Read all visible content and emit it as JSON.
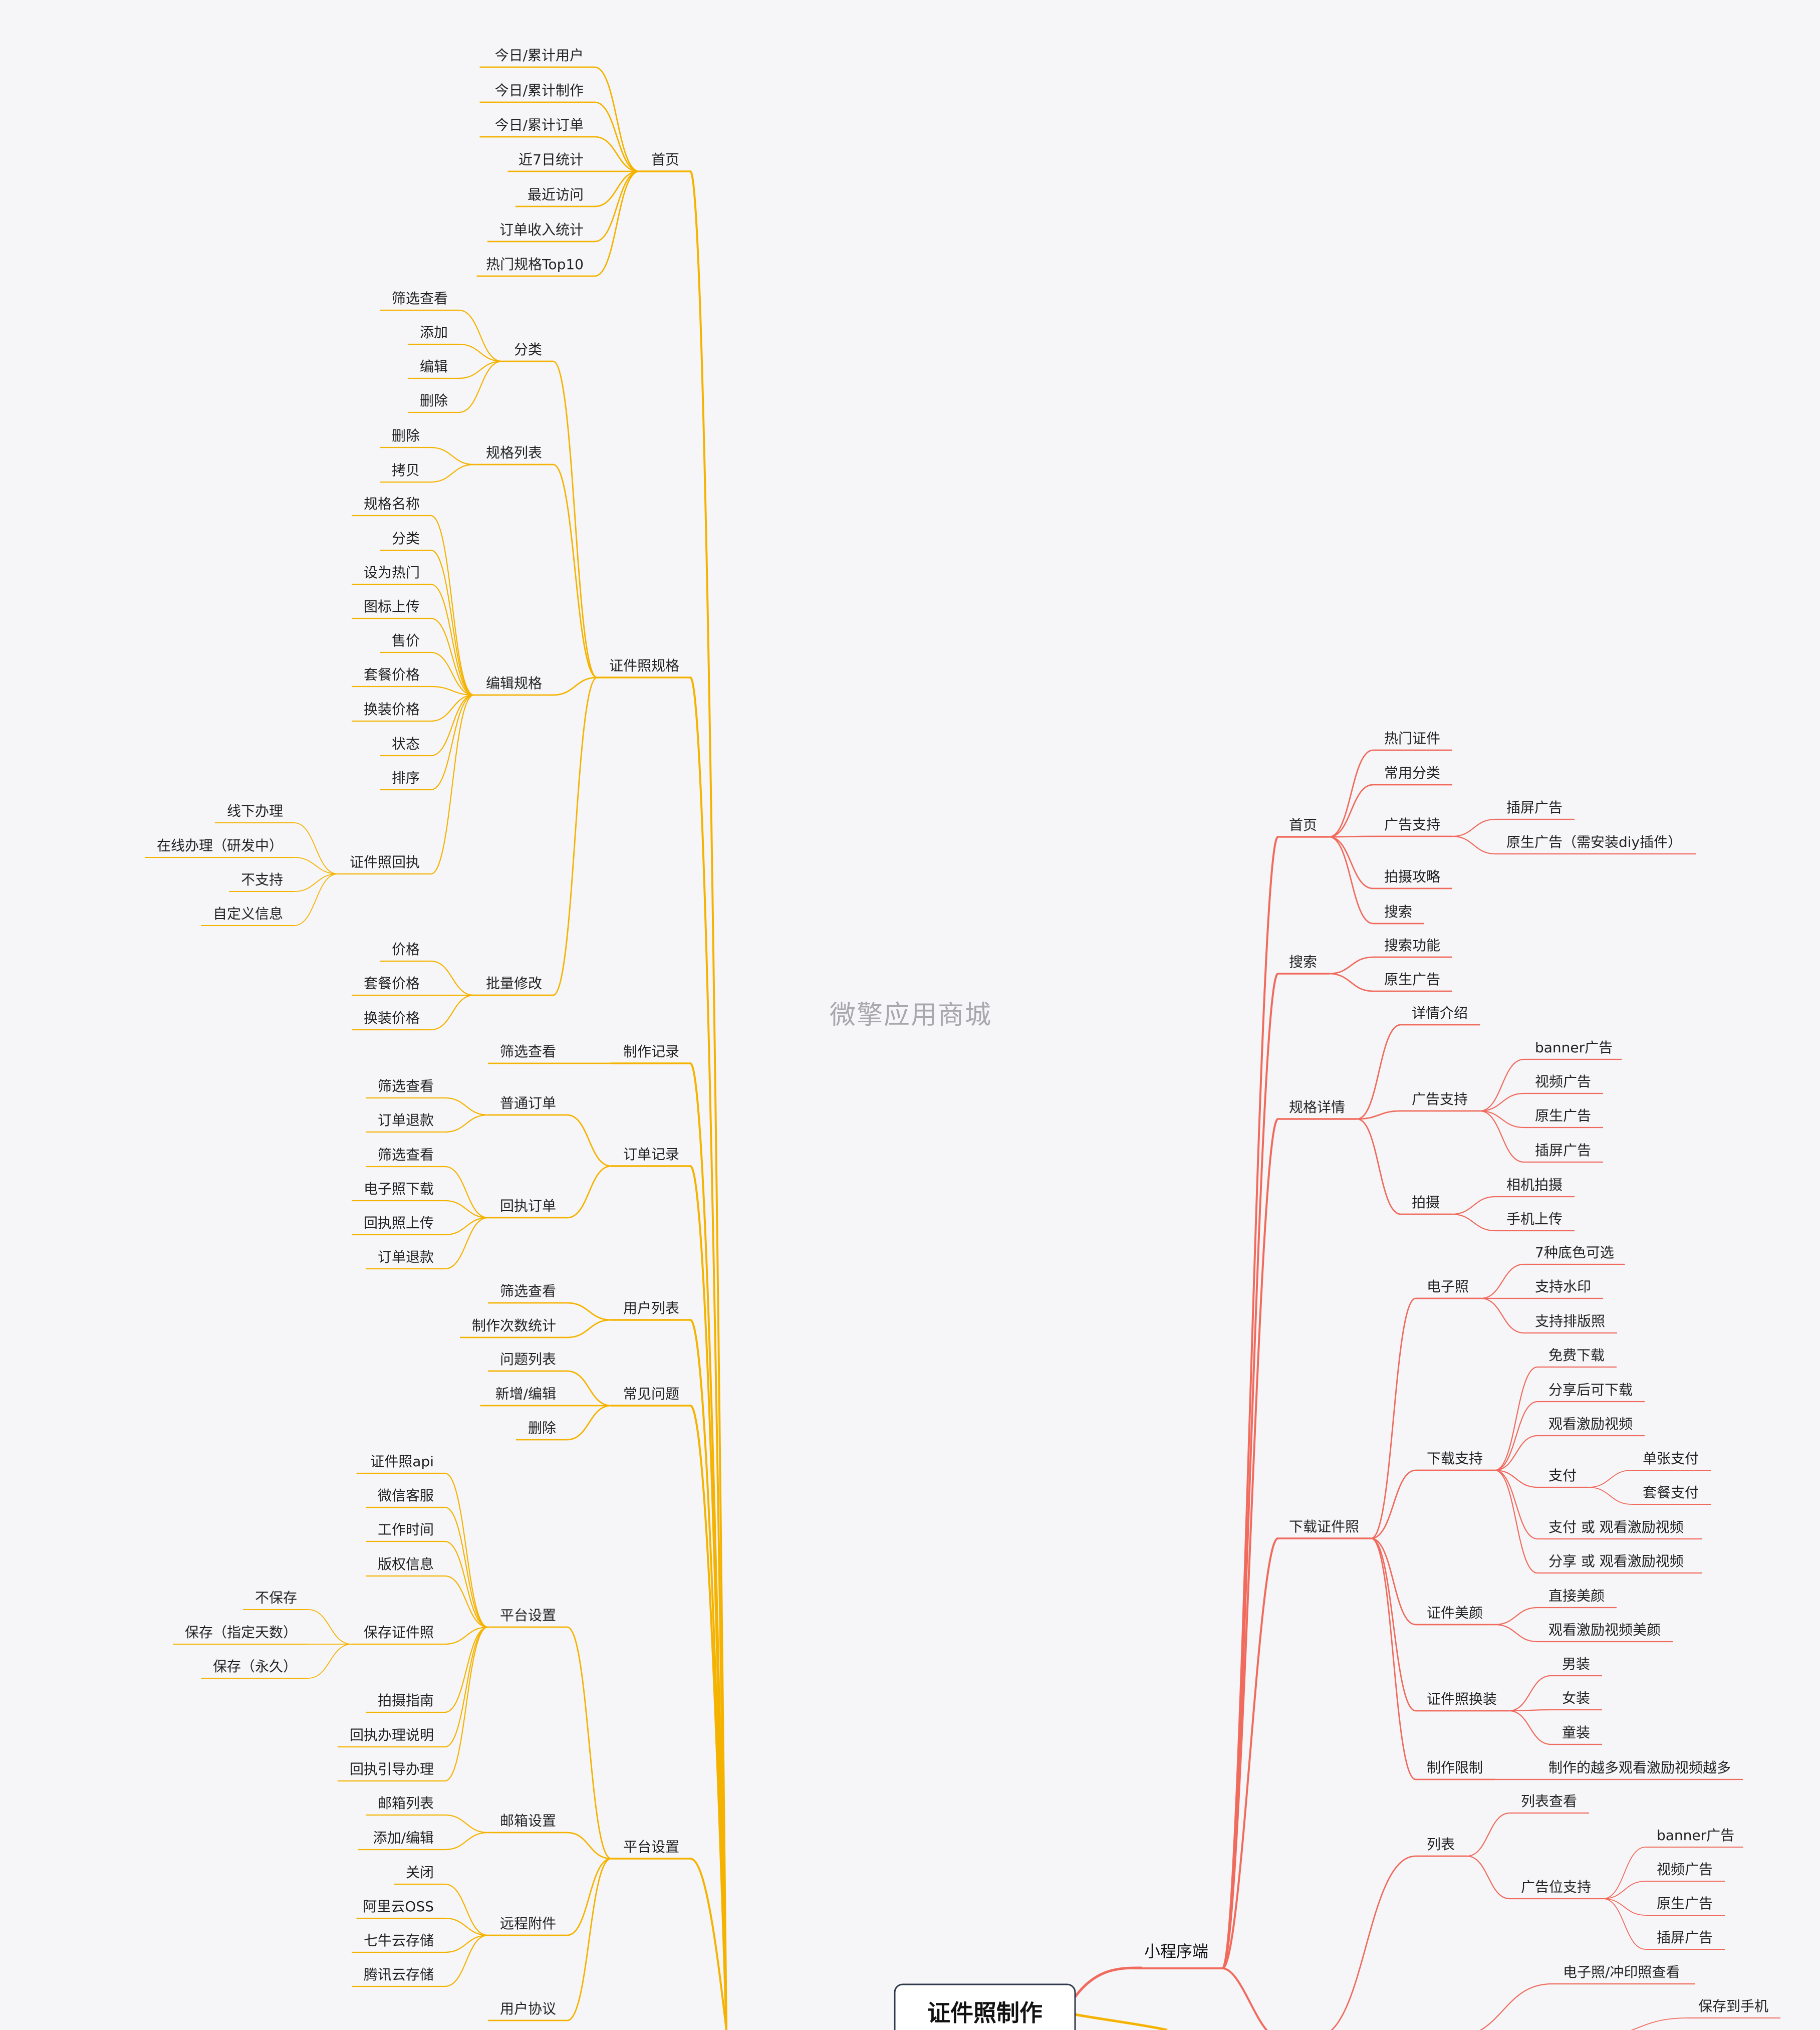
{
  "watermark": "微擎应用商城",
  "colors": {
    "background": "#f6f6f9",
    "admin_branch": "#f5b301",
    "mp_branch": "#f06b5d",
    "text": "#222222"
  },
  "center": {
    "label": "证件照制作"
  },
  "miniapp_branch": {
    "label": "小程序端",
    "children": [
      {
        "label": "首页",
        "children": [
          {
            "label": "热门证件"
          },
          {
            "label": "常用分类"
          },
          {
            "label": "广告支持",
            "children": [
              {
                "label": "插屏广告"
              },
              {
                "label": "原生广告（需安装diy插件）"
              }
            ]
          },
          {
            "label": "拍摄攻略"
          },
          {
            "label": "搜索"
          }
        ]
      },
      {
        "label": "搜索",
        "children": [
          {
            "label": "搜索功能"
          },
          {
            "label": "原生广告"
          }
        ]
      },
      {
        "label": "规格详情",
        "children": [
          {
            "label": "详情介绍"
          },
          {
            "label": "广告支持",
            "children": [
              {
                "label": "banner广告"
              },
              {
                "label": "视频广告"
              },
              {
                "label": "原生广告"
              },
              {
                "label": "插屏广告"
              }
            ]
          },
          {
            "label": "拍摄",
            "children": [
              {
                "label": "相机拍摄"
              },
              {
                "label": "手机上传"
              }
            ]
          }
        ]
      },
      {
        "label": "下载证件照",
        "children": [
          {
            "label": "电子照",
            "children": [
              {
                "label": "7种底色可选"
              },
              {
                "label": "支持水印"
              },
              {
                "label": "支持排版照"
              }
            ]
          },
          {
            "label": "下载支持",
            "children": [
              {
                "label": "免费下载"
              },
              {
                "label": "分享后可下载"
              },
              {
                "label": "观看激励视频"
              },
              {
                "label": "支付",
                "children": [
                  {
                    "label": "单张支付"
                  },
                  {
                    "label": "套餐支付"
                  }
                ]
              },
              {
                "label": "支付 或 观看激励视频"
              },
              {
                "label": "分享 或 观看激励视频"
              }
            ]
          },
          {
            "label": "证件美颜",
            "children": [
              {
                "label": "直接美颜"
              },
              {
                "label": "观看激励视频美颜"
              }
            ]
          },
          {
            "label": "证件照换装",
            "children": [
              {
                "label": "男装"
              },
              {
                "label": "女装"
              },
              {
                "label": "童装"
              }
            ]
          },
          {
            "label": "制作限制",
            "children": [
              {
                "label": "制作的越多观看激励视频越多"
              }
            ]
          }
        ]
      },
      {
        "label": "",
        "children": [
          {
            "label": "列表",
            "children": [
              {
                "label": "列表查看"
              },
              {
                "label": "广告位支持",
                "children": [
                  {
                    "label": "banner广告"
                  },
                  {
                    "label": "视频广告"
                  },
                  {
                    "label": "原生广告"
                  },
                  {
                    "label": "插屏广告"
                  }
                ]
              }
            ]
          },
          {
            "label": "",
            "children": [
              {
                "label": "电子照/冲印照查看"
              },
              {
                "label": "",
                "children": [
                  {
                    "label": "保存到手机"
                  }
                ]
              }
            ]
          }
        ]
      }
    ]
  },
  "admin_branch": {
    "children": [
      {
        "label": "首页",
        "children": [
          {
            "label": "今日/累计用户"
          },
          {
            "label": "今日/累计制作"
          },
          {
            "label": "今日/累计订单"
          },
          {
            "label": "近7日统计"
          },
          {
            "label": "最近访问"
          },
          {
            "label": "订单收入统计"
          },
          {
            "label": "热门规格Top10"
          }
        ]
      },
      {
        "label": "证件照规格",
        "children": [
          {
            "label": "分类",
            "children": [
              {
                "label": "筛选查看"
              },
              {
                "label": "添加"
              },
              {
                "label": "编辑"
              },
              {
                "label": "删除"
              }
            ]
          },
          {
            "label": "规格列表",
            "children": [
              {
                "label": "删除"
              },
              {
                "label": "拷贝"
              }
            ]
          },
          {
            "label": "编辑规格",
            "children": [
              {
                "label": "规格名称"
              },
              {
                "label": "分类"
              },
              {
                "label": "设为热门"
              },
              {
                "label": "图标上传"
              },
              {
                "label": "售价"
              },
              {
                "label": "套餐价格"
              },
              {
                "label": "换装价格"
              },
              {
                "label": "状态"
              },
              {
                "label": "排序"
              },
              {
                "label": "证件照回执",
                "children": [
                  {
                    "label": "线下办理"
                  },
                  {
                    "label": "在线办理（研发中）"
                  },
                  {
                    "label": "不支持"
                  },
                  {
                    "label": "自定义信息"
                  }
                ]
              }
            ]
          },
          {
            "label": "批量修改",
            "children": [
              {
                "label": "价格"
              },
              {
                "label": "套餐价格"
              },
              {
                "label": "换装价格"
              }
            ]
          }
        ]
      },
      {
        "label": "制作记录",
        "children": [
          {
            "label": "筛选查看"
          }
        ]
      },
      {
        "label": "订单记录",
        "children": [
          {
            "label": "普通订单",
            "children": [
              {
                "label": "筛选查看"
              },
              {
                "label": "订单退款"
              }
            ]
          },
          {
            "label": "回执订单",
            "children": [
              {
                "label": "筛选查看"
              },
              {
                "label": "电子照下载"
              },
              {
                "label": "回执照上传"
              },
              {
                "label": "订单退款"
              }
            ]
          }
        ]
      },
      {
        "label": "用户列表",
        "children": [
          {
            "label": "筛选查看"
          },
          {
            "label": "制作次数统计"
          }
        ]
      },
      {
        "label": "常见问题",
        "children": [
          {
            "label": "问题列表"
          },
          {
            "label": "新增/编辑"
          },
          {
            "label": "删除"
          }
        ]
      },
      {
        "label": "平台设置",
        "children": [
          {
            "label": "平台设置",
            "children": [
              {
                "label": "证件照api"
              },
              {
                "label": "微信客服"
              },
              {
                "label": "工作时间"
              },
              {
                "label": "版权信息"
              },
              {
                "label": "保存证件照",
                "children": [
                  {
                    "label": "不保存"
                  },
                  {
                    "label": "保存（指定天数）"
                  },
                  {
                    "label": "保存（永久）"
                  }
                ]
              },
              {
                "label": "拍摄指南"
              },
              {
                "label": "回执办理说明"
              },
              {
                "label": "回执引导办理"
              }
            ]
          },
          {
            "label": "邮箱设置",
            "children": [
              {
                "label": "邮箱列表"
              },
              {
                "label": "添加/编辑"
              }
            ]
          },
          {
            "label": "远程附件",
            "children": [
              {
                "label": "关闭"
              },
              {
                "label": "阿里云OSS"
              },
              {
                "label": "七牛云存储"
              },
              {
                "label": "腾讯云存储"
              }
            ]
          },
          {
            "label": "用户协议"
          }
        ]
      }
    ]
  }
}
